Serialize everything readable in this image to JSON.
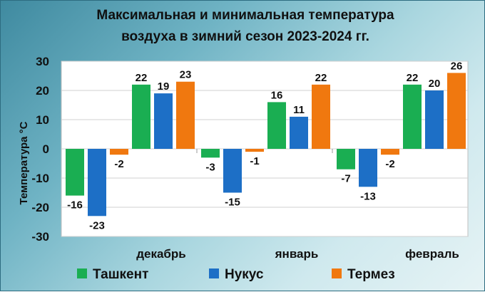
{
  "chart_data": {
    "type": "bar",
    "title_lines": [
      "Максимальная и минимальная температура",
      "воздуха в зимний сезон 2023-2024 гг."
    ],
    "ylabel": "Температура °С",
    "xlabel": "",
    "ylim": [
      -30,
      30
    ],
    "yticks": [
      30,
      20,
      10,
      0,
      -10,
      -20,
      -30
    ],
    "grid": true,
    "legend_position": "bottom",
    "months": [
      {
        "name": "декабрь",
        "values": {
          "Ташкент": [
            -16,
            22
          ],
          "Нукус": [
            -23,
            19
          ],
          "Термез": [
            -2,
            23
          ]
        }
      },
      {
        "name": "январь",
        "values": {
          "Ташкент": [
            -3,
            16
          ],
          "Нукус": [
            -15,
            11
          ],
          "Термез": [
            -1,
            22
          ]
        }
      },
      {
        "name": "февраль",
        "values": {
          "Ташкент": [
            -7,
            22
          ],
          "Нукус": [
            -13,
            20
          ],
          "Термез": [
            -2,
            26
          ]
        }
      }
    ],
    "series": [
      {
        "name": "Ташкент",
        "color": "#1aae52"
      },
      {
        "name": "Нукус",
        "color": "#1d6fc6"
      },
      {
        "name": "Термез",
        "color": "#f0780f"
      }
    ]
  }
}
